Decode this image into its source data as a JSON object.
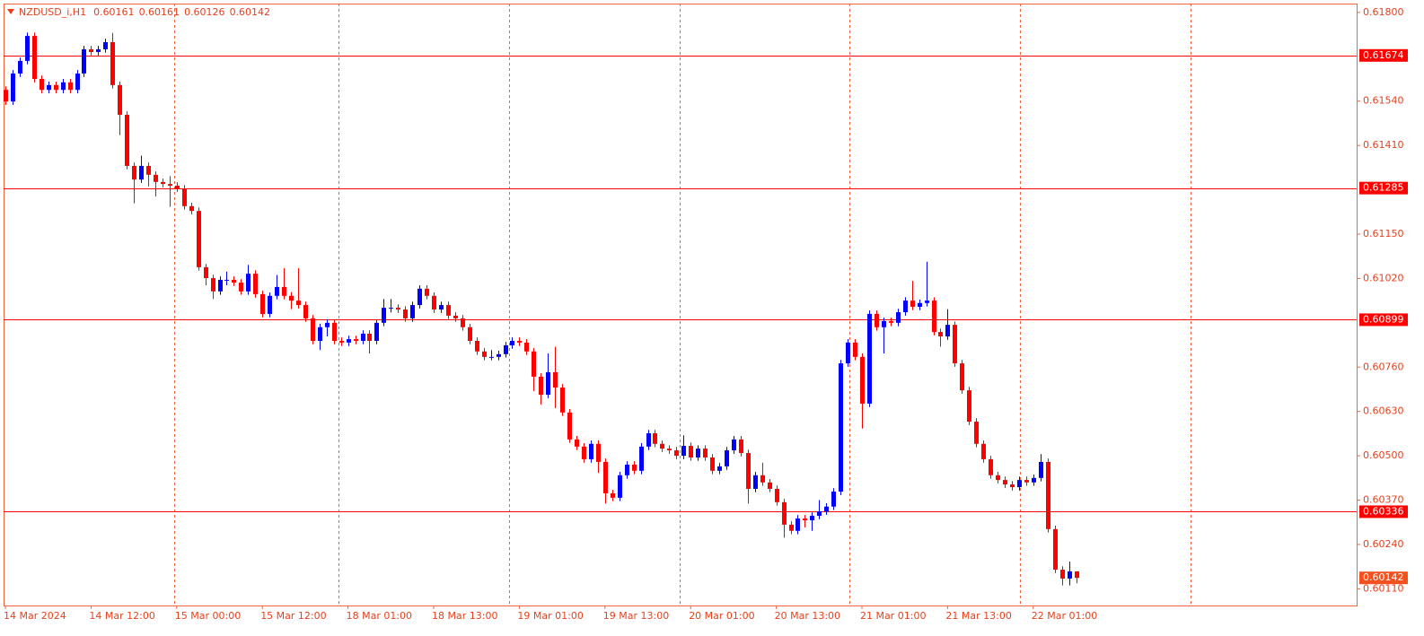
{
  "chart_data": {
    "type": "candlestick",
    "title": "NZDUSD_i,H1",
    "x": [
      "14 Mar 2024",
      null,
      null,
      null,
      null,
      null,
      null,
      null,
      null,
      null,
      null,
      null,
      "14 Mar 12:00",
      null,
      null,
      null,
      null,
      null,
      null,
      null,
      null,
      null,
      null,
      null,
      "15 Mar 00:00",
      null,
      null,
      null,
      null,
      null,
      null,
      null,
      null,
      null,
      null,
      null,
      "15 Mar 12:00",
      null,
      null,
      null,
      null,
      null,
      null,
      null,
      null,
      null,
      null,
      null,
      "18 Mar 01:00",
      null,
      null,
      null,
      null,
      null,
      null,
      null,
      null,
      null,
      null,
      null,
      "18 Mar 13:00",
      null,
      null,
      null,
      null,
      null,
      null,
      null,
      null,
      null,
      null,
      null,
      "19 Mar 01:00",
      null,
      null,
      null,
      null,
      null,
      null,
      null,
      null,
      null,
      null,
      null,
      "19 Mar 13:00",
      null,
      null,
      null,
      null,
      null,
      null,
      null,
      null,
      null,
      null,
      null,
      "20 Mar 01:00",
      null,
      null,
      null,
      null,
      null,
      null,
      null,
      null,
      null,
      null,
      null,
      "20 Mar 13:00",
      null,
      null,
      null,
      null,
      null,
      null,
      null,
      null,
      null,
      null,
      null,
      "21 Mar 01:00",
      null,
      null,
      null,
      null,
      null,
      null,
      null,
      null,
      null,
      null,
      null,
      "21 Mar 13:00",
      null,
      null,
      null,
      null,
      null,
      null,
      null,
      null,
      null,
      null,
      null,
      "22 Mar 01:00",
      null,
      null,
      null,
      null,
      null,
      null
    ],
    "open": [
      0.61573,
      0.61539,
      0.61621,
      0.61658,
      0.61731,
      0.61605,
      0.61573,
      0.61587,
      0.61573,
      0.61595,
      0.61573,
      0.61621,
      0.61692,
      0.61684,
      0.61692,
      0.61713,
      0.61587,
      0.615,
      0.6135,
      0.6131,
      0.6135,
      0.61324,
      0.61303,
      0.61297,
      0.61292,
      0.61284,
      0.61232,
      0.61218,
      0.61053,
      0.61021,
      0.60982,
      0.61016,
      0.61016,
      0.61008,
      0.60982,
      0.61034,
      0.60974,
      0.60916,
      0.60969,
      0.60995,
      0.60969,
      0.60955,
      0.60942,
      0.60903,
      0.60837,
      0.60877,
      0.6089,
      0.60837,
      0.60832,
      0.60842,
      0.60837,
      0.60858,
      0.60837,
      0.6089,
      0.60934,
      0.60934,
      0.60929,
      0.60903,
      0.60942,
      0.6099,
      0.60969,
      0.60929,
      0.60942,
      0.60911,
      0.60903,
      0.60877,
      0.60837,
      0.60806,
      0.6079,
      0.6079,
      0.60798,
      0.60824,
      0.60837,
      0.60832,
      0.60806,
      0.60732,
      0.60679,
      0.60745,
      0.607,
      0.60627,
      0.60548,
      0.60527,
      0.6049,
      0.60535,
      0.60482,
      0.6039,
      0.60377,
      0.60443,
      0.60474,
      0.60456,
      0.60527,
      0.60566,
      0.60535,
      0.60521,
      0.60516,
      0.605,
      0.60529,
      0.60495,
      0.60521,
      0.60495,
      0.60456,
      0.60469,
      0.60516,
      0.60548,
      0.60508,
      0.60403,
      0.60443,
      0.60422,
      0.60403,
      0.60364,
      0.60298,
      0.6028,
      0.60316,
      0.60311,
      0.60324,
      0.60337,
      0.60351,
      0.60395,
      0.60771,
      0.60832,
      0.6079,
      0.60653,
      0.60916,
      0.60877,
      0.60895,
      0.6089,
      0.60921,
      0.60955,
      0.60937,
      0.60948,
      0.60955,
      0.60863,
      0.6085,
      0.60884,
      0.60771,
      0.60692,
      0.606,
      0.60535,
      0.6049,
      0.60443,
      0.60429,
      0.60416,
      0.60408,
      0.60429,
      0.60422,
      0.60435,
      0.60482,
      0.60285,
      0.60166,
      0.6014,
      0.60161
    ],
    "high": [
      0.61583,
      0.61631,
      0.61668,
      0.61741,
      0.61741,
      0.61615,
      0.61597,
      0.61597,
      0.61605,
      0.61605,
      0.61631,
      0.61702,
      0.61702,
      0.61702,
      0.61723,
      0.6174,
      0.61597,
      0.6151,
      0.6136,
      0.6138,
      0.6136,
      0.61334,
      0.61313,
      0.6132,
      0.61302,
      0.61294,
      0.61242,
      0.61228,
      0.61063,
      0.61031,
      0.61026,
      0.6104,
      0.61026,
      0.61018,
      0.6106,
      0.61044,
      0.60984,
      0.60979,
      0.6103,
      0.6105,
      0.6098,
      0.6105,
      0.60952,
      0.60913,
      0.60887,
      0.609,
      0.609,
      0.60847,
      0.60852,
      0.60852,
      0.60868,
      0.60868,
      0.609,
      0.6096,
      0.6096,
      0.60944,
      0.60939,
      0.60952,
      0.61,
      0.61,
      0.60979,
      0.60952,
      0.60952,
      0.60921,
      0.60913,
      0.60887,
      0.60847,
      0.60816,
      0.6081,
      0.60808,
      0.60834,
      0.60847,
      0.60847,
      0.60842,
      0.60816,
      0.60742,
      0.608,
      0.6082,
      0.6071,
      0.60637,
      0.60558,
      0.60537,
      0.60545,
      0.60545,
      0.60492,
      0.604,
      0.60453,
      0.60484,
      0.60484,
      0.60537,
      0.60576,
      0.60576,
      0.60545,
      0.60531,
      0.60526,
      0.6056,
      0.60539,
      0.60531,
      0.60531,
      0.60505,
      0.60479,
      0.60526,
      0.60558,
      0.60558,
      0.60518,
      0.60453,
      0.6048,
      0.60432,
      0.60413,
      0.60374,
      0.60308,
      0.60326,
      0.60326,
      0.60334,
      0.6037,
      0.60361,
      0.60405,
      0.60781,
      0.60842,
      0.60842,
      0.608,
      0.60926,
      0.60926,
      0.60905,
      0.60905,
      0.60931,
      0.60965,
      0.61013,
      0.60958,
      0.61069,
      0.60965,
      0.60873,
      0.6093,
      0.60894,
      0.60781,
      0.60702,
      0.6061,
      0.60545,
      0.605,
      0.60453,
      0.60439,
      0.60426,
      0.60439,
      0.60439,
      0.60445,
      0.60505,
      0.60492,
      0.60295,
      0.60176,
      0.6019,
      0.60161
    ],
    "low": [
      0.61529,
      0.61529,
      0.61611,
      0.61648,
      0.61595,
      0.61563,
      0.61563,
      0.61563,
      0.61563,
      0.61563,
      0.61563,
      0.61611,
      0.61674,
      0.61674,
      0.61682,
      0.61577,
      0.6144,
      0.6134,
      0.6124,
      0.613,
      0.6129,
      0.6126,
      0.61287,
      0.6123,
      0.61274,
      0.61222,
      0.61208,
      0.61043,
      0.61,
      0.6096,
      0.60972,
      0.61,
      0.60998,
      0.60972,
      0.60972,
      0.60964,
      0.60906,
      0.60906,
      0.60959,
      0.60959,
      0.6093,
      0.60932,
      0.60893,
      0.60827,
      0.6081,
      0.6085,
      0.60827,
      0.60822,
      0.60822,
      0.60827,
      0.60827,
      0.608,
      0.60827,
      0.6088,
      0.6092,
      0.60919,
      0.60893,
      0.60893,
      0.60932,
      0.60959,
      0.60919,
      0.60919,
      0.60901,
      0.60893,
      0.60867,
      0.60827,
      0.60796,
      0.6078,
      0.6078,
      0.6078,
      0.60788,
      0.60814,
      0.60822,
      0.60796,
      0.6069,
      0.6065,
      0.60669,
      0.6064,
      0.60617,
      0.60538,
      0.60517,
      0.6048,
      0.6048,
      0.6045,
      0.6036,
      0.60367,
      0.60367,
      0.60433,
      0.60446,
      0.60446,
      0.60517,
      0.60525,
      0.60511,
      0.60506,
      0.6049,
      0.6049,
      0.60485,
      0.60485,
      0.60485,
      0.60446,
      0.60446,
      0.60459,
      0.60506,
      0.60498,
      0.6036,
      0.60393,
      0.60412,
      0.60393,
      0.60354,
      0.6026,
      0.6027,
      0.6027,
      0.6029,
      0.6028,
      0.60314,
      0.60327,
      0.60341,
      0.60385,
      0.60761,
      0.6078,
      0.6058,
      0.60643,
      0.60867,
      0.608,
      0.6088,
      0.6088,
      0.60911,
      0.60927,
      0.60927,
      0.60938,
      0.60853,
      0.6082,
      0.6084,
      0.60761,
      0.60682,
      0.6059,
      0.60525,
      0.6048,
      0.60433,
      0.60419,
      0.60406,
      0.60398,
      0.60398,
      0.60412,
      0.60412,
      0.60425,
      0.60275,
      0.60156,
      0.6012,
      0.6012,
      0.60126
    ],
    "close": [
      0.61539,
      0.61621,
      0.61658,
      0.61731,
      0.61605,
      0.61573,
      0.61587,
      0.61573,
      0.61595,
      0.61573,
      0.61621,
      0.61692,
      0.61684,
      0.61692,
      0.61713,
      0.61587,
      0.615,
      0.6135,
      0.6131,
      0.6135,
      0.61324,
      0.61303,
      0.61297,
      0.61292,
      0.61284,
      0.61232,
      0.61218,
      0.61053,
      0.61021,
      0.60982,
      0.61016,
      0.61016,
      0.61008,
      0.60982,
      0.61034,
      0.60974,
      0.60916,
      0.60969,
      0.60995,
      0.60969,
      0.60955,
      0.60942,
      0.60903,
      0.60837,
      0.60877,
      0.6089,
      0.60837,
      0.60832,
      0.60842,
      0.60837,
      0.60858,
      0.60837,
      0.6089,
      0.60934,
      0.60934,
      0.60929,
      0.60903,
      0.60942,
      0.6099,
      0.60969,
      0.60929,
      0.60942,
      0.60911,
      0.60903,
      0.60877,
      0.60837,
      0.60806,
      0.6079,
      0.6079,
      0.60798,
      0.60824,
      0.60837,
      0.60832,
      0.60806,
      0.60732,
      0.60679,
      0.60745,
      0.607,
      0.60627,
      0.60548,
      0.60527,
      0.6049,
      0.60535,
      0.60482,
      0.6039,
      0.60377,
      0.60443,
      0.60474,
      0.60456,
      0.60527,
      0.60566,
      0.60535,
      0.60521,
      0.60516,
      0.605,
      0.60529,
      0.60495,
      0.60521,
      0.60495,
      0.60456,
      0.60469,
      0.60516,
      0.60548,
      0.60508,
      0.60403,
      0.60443,
      0.60422,
      0.60403,
      0.60364,
      0.60298,
      0.6028,
      0.60316,
      0.60311,
      0.60324,
      0.60337,
      0.60351,
      0.60395,
      0.60771,
      0.60832,
      0.6079,
      0.60653,
      0.60916,
      0.60877,
      0.60895,
      0.6089,
      0.60921,
      0.60955,
      0.60937,
      0.60948,
      0.60955,
      0.60863,
      0.6085,
      0.60884,
      0.60771,
      0.60692,
      0.606,
      0.60535,
      0.6049,
      0.60443,
      0.60429,
      0.60416,
      0.60408,
      0.60429,
      0.60422,
      0.60435,
      0.60482,
      0.60285,
      0.60166,
      0.6014,
      0.60161,
      0.60142
    ],
    "ylim": [
      0.60061,
      0.61826
    ],
    "yticks": [
      {
        "value": 0.618,
        "label": "0.61800"
      },
      {
        "value": 0.6154,
        "label": "0.61540"
      },
      {
        "value": 0.6141,
        "label": "0.61410"
      },
      {
        "value": 0.6115,
        "label": "0.61150"
      },
      {
        "value": 0.6102,
        "label": "0.61020"
      },
      {
        "value": 0.6076,
        "label": "0.60760"
      },
      {
        "value": 0.6063,
        "label": "0.60630"
      },
      {
        "value": 0.605,
        "label": "0.60500"
      },
      {
        "value": 0.6037,
        "label": "0.60370"
      },
      {
        "value": 0.6024,
        "label": "0.60240"
      },
      {
        "value": 0.6011,
        "label": "0.60110"
      }
    ],
    "levels": [
      0.61674,
      0.61285,
      0.60899,
      0.60336
    ],
    "up_color": "#0000ff",
    "down_color": "#ff0000",
    "level_color": "#ff0000",
    "price_color": "#f4511e",
    "grid": true
  }
}
